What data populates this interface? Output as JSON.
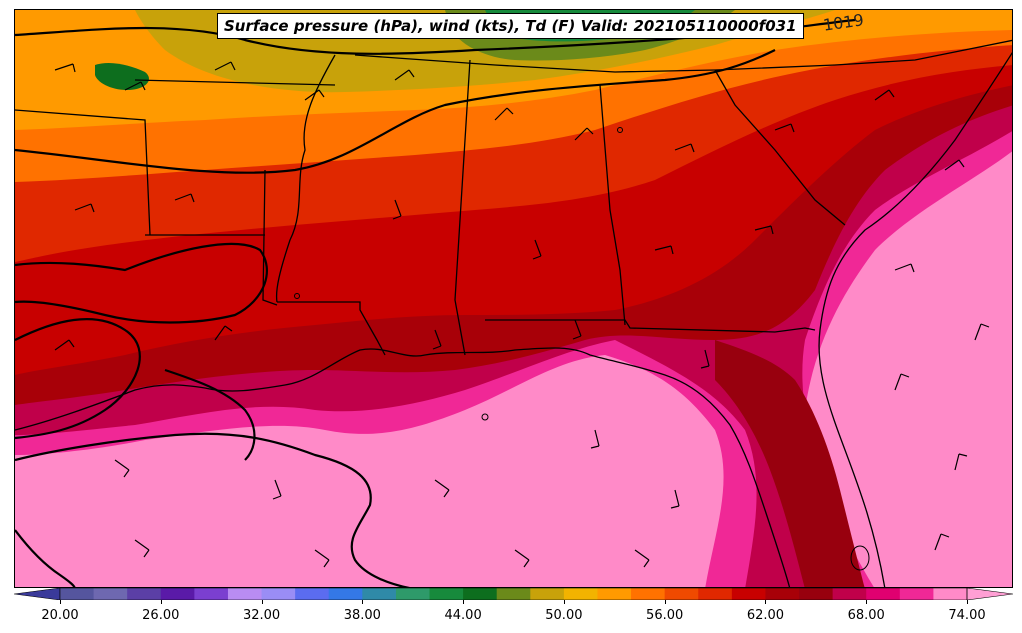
{
  "title": "Surface pressure (hPa), wind (kts), Td (F) Valid: 202105110000f031",
  "isobar_label": "1019",
  "colorbar": {
    "tick_labels": [
      "20.00",
      "26.00",
      "32.00",
      "38.00",
      "44.00",
      "50.00",
      "56.00",
      "62.00",
      "68.00",
      "74.00"
    ],
    "range": [
      18,
      76
    ],
    "step": 2,
    "colors": [
      "#3a3a9a",
      "#55559e",
      "#6e68b0",
      "#5b3fa6",
      "#5a1aa8",
      "#7b3fd0",
      "#b98cf2",
      "#9a8df5",
      "#5b6cf0",
      "#3478e6",
      "#2f8aa8",
      "#2e9a6a",
      "#178a3c",
      "#0d6e1e",
      "#6b8a1a",
      "#c8a20a",
      "#f2b300",
      "#ff9a00",
      "#ff7200",
      "#f04a00",
      "#e02800",
      "#c80000",
      "#a80008",
      "#98000e",
      "#c0004a",
      "#e00070",
      "#f02896",
      "#ff8ac8",
      "#ff9fd4"
    ]
  },
  "colors": {
    "frame": "#000000",
    "coast": "#000000",
    "isobar": "#000000",
    "barb": "#000000"
  }
}
